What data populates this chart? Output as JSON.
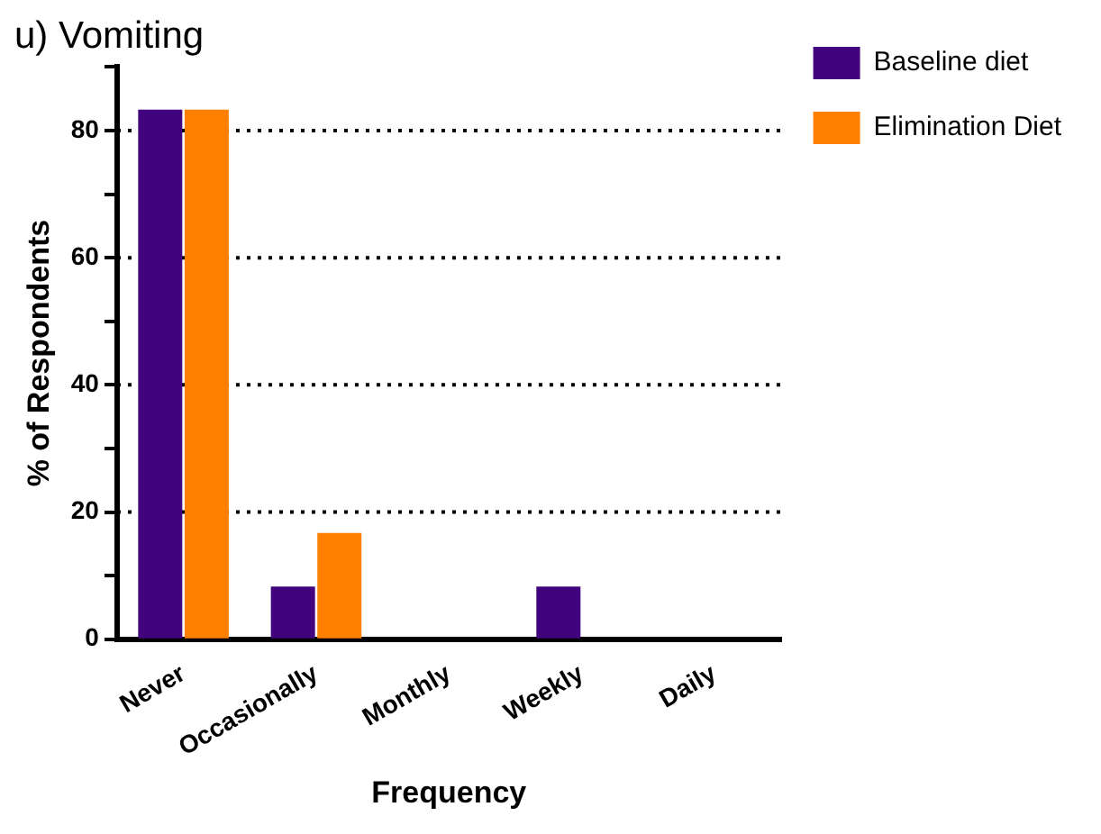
{
  "chart_data": {
    "type": "bar",
    "title": "u) Vomiting",
    "xlabel": "Frequency",
    "ylabel": "% of Respondents",
    "categories": [
      "Never",
      "Occasionally",
      "Monthly",
      "Weekly",
      "Daily"
    ],
    "series": [
      {
        "name": "Baseline diet",
        "color": "#42047e",
        "values": [
          83.3,
          8.3,
          0,
          8.3,
          0
        ]
      },
      {
        "name": "Elimination Diet",
        "color": "#ff8000",
        "values": [
          83.3,
          16.7,
          0,
          0,
          0
        ]
      }
    ],
    "ylim": [
      0,
      90
    ],
    "yticks": [
      0,
      {
        "value": 10,
        "label": null
      },
      20,
      {
        "value": 30,
        "label": null
      },
      40,
      {
        "value": 50,
        "label": null
      },
      60,
      {
        "value": 70,
        "label": null
      },
      80,
      {
        "value": 90,
        "label": null
      }
    ],
    "grid": "y",
    "line_style": "dotted",
    "legend": "top right"
  }
}
